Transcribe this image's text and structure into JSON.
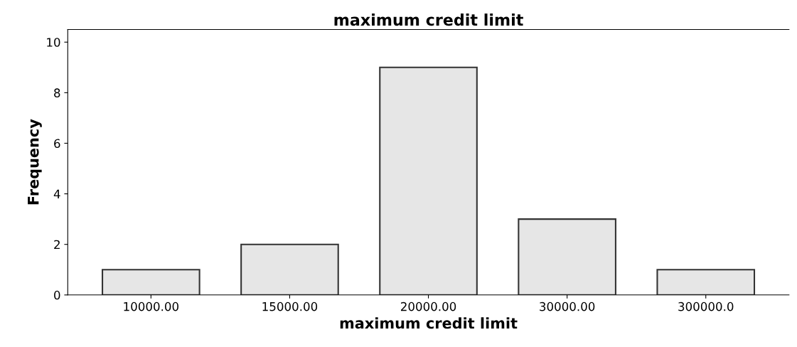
{
  "chart_data": {
    "type": "bar",
    "title": "maximum credit limit",
    "xlabel": "maximum credit limit",
    "ylabel": "Frequency",
    "categories": [
      "10000.00",
      "15000.00",
      "20000.00",
      "30000.00",
      "300000.0"
    ],
    "values": [
      1,
      2,
      9,
      3,
      1
    ],
    "color": "#e6e6e6",
    "ylim": [
      0,
      10.5
    ],
    "yticks": [
      0,
      2,
      4,
      6,
      8,
      10
    ],
    "grid": false
  }
}
